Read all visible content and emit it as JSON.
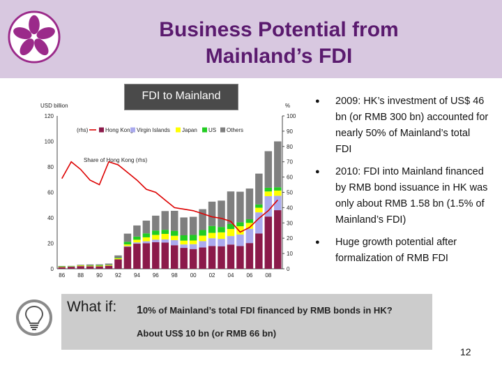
{
  "slide": {
    "title_line1": "Business Potential from",
    "title_line2": "Mainland’s FDI",
    "chart_label": "FDI to Mainland",
    "page_number": "12"
  },
  "bullets": [
    "2009: HK’s investment of US$ 46 bn (or RMB 300 bn) accounted for nearly 50% of Mainland’s total FDI",
    "2010: FDI into Mainland financed by RMB bond issuance in HK was only about RMB 1.58 bn (1.5% of Mainland’s FDI)",
    "Huge growth potential after formalization of RMB FDI"
  ],
  "bullet_marker": "●",
  "what_if": {
    "label": "What if:",
    "line1_lead": "1",
    "line1_rest": "0% of Mainland’s total FDI financed by RMB bonds in HK?",
    "line2": "About US$ 10 bn (or RMB 66 bn)"
  },
  "colors": {
    "header_bg": "#d8c8e0",
    "title": "#5a1a6e",
    "hong_kong": "#8b1a4a",
    "virgin_islands": "#aaaaee",
    "japan": "#ffff00",
    "us": "#22cc22",
    "others": "#7f7f7f",
    "share_line": "#dd0000"
  },
  "icons": [
    "hong-kong-bauhinia-logo-icon",
    "lightbulb-icon"
  ],
  "chart_data": {
    "type": "bar",
    "stacked": true,
    "left_axis_label": "USD billion",
    "right_axis_label": "%",
    "ylim": [
      0,
      120
    ],
    "y2lim": [
      0,
      100
    ],
    "yticks": [
      "0",
      "20",
      "40",
      "60",
      "80",
      "100",
      "120"
    ],
    "y2ticks": [
      "0",
      "10",
      "20",
      "30",
      "40",
      "50",
      "60",
      "70",
      "80",
      "90",
      "100"
    ],
    "x_tick_labels": [
      "86",
      "88",
      "90",
      "92",
      "94",
      "96",
      "98",
      "00",
      "02",
      "04",
      "06",
      "08"
    ],
    "years": [
      1986,
      1987,
      1988,
      1989,
      1990,
      1991,
      1992,
      1993,
      1994,
      1995,
      1996,
      1997,
      1998,
      1999,
      2000,
      2001,
      2002,
      2003,
      2004,
      2005,
      2006,
      2007,
      2008,
      2009
    ],
    "legend_rhs": "(rhs)",
    "line_label": "Share of Hong Kong (rhs)",
    "series": [
      {
        "name": "Hong Kong",
        "values": [
          1.3,
          1.6,
          2.1,
          2.0,
          1.9,
          2.4,
          7.5,
          17.3,
          19.7,
          20.1,
          20.9,
          20.6,
          18.5,
          16.4,
          15.5,
          16.7,
          17.9,
          17.7,
          19.0,
          17.9,
          20.2,
          27.7,
          41.0,
          46.0
        ]
      },
      {
        "name": "Virgin Islands",
        "values": [
          0,
          0,
          0,
          0,
          0,
          0,
          0,
          0.5,
          1.0,
          1.5,
          2.0,
          2.5,
          4.0,
          2.7,
          3.8,
          5.0,
          6.1,
          5.8,
          6.7,
          9.0,
          11.2,
          16.6,
          16.0,
          11.3
        ]
      },
      {
        "name": "Japan",
        "values": [
          0.3,
          0.2,
          0.5,
          0.4,
          0.5,
          0.5,
          0.7,
          1.3,
          2.1,
          3.1,
          3.7,
          4.3,
          3.4,
          3.0,
          2.9,
          4.3,
          4.2,
          5.1,
          5.5,
          6.5,
          4.6,
          3.6,
          3.7,
          4.1
        ]
      },
      {
        "name": "US",
        "values": [
          0.3,
          0.3,
          0.2,
          0.3,
          0.5,
          0.3,
          0.5,
          2.1,
          2.5,
          3.1,
          3.4,
          3.2,
          3.9,
          4.2,
          4.4,
          4.4,
          5.4,
          4.2,
          3.9,
          3.1,
          2.9,
          2.6,
          2.9,
          2.6
        ]
      },
      {
        "name": "Others",
        "values": [
          0.3,
          0.2,
          0.4,
          0.7,
          0.6,
          0.9,
          1.8,
          6.4,
          8.7,
          10.0,
          11.7,
          14.7,
          15.7,
          14.0,
          14.2,
          16.4,
          19.1,
          20.7,
          25.6,
          24.0,
          24.1,
          24.2,
          28.7,
          36.0
        ]
      }
    ],
    "line_series": {
      "name": "Share of Hong Kong",
      "axis": "rhs",
      "values": [
        59,
        70,
        65,
        58,
        55,
        70,
        68,
        63,
        58,
        52,
        50,
        45,
        40,
        39,
        38,
        36,
        34,
        33,
        31,
        24,
        27,
        33,
        38,
        45
      ]
    }
  }
}
